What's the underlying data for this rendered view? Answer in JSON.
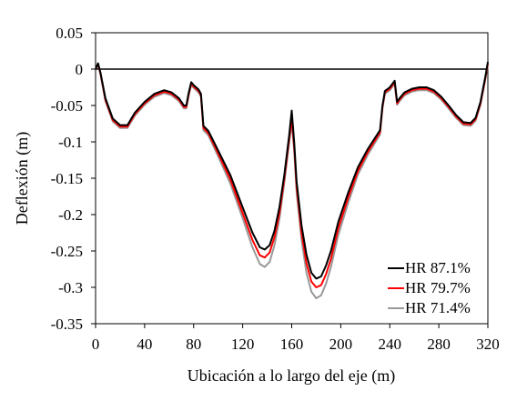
{
  "chart_data": {
    "type": "line",
    "title": "",
    "xlabel": "Ubicación a lo largo del eje (m)",
    "ylabel": "Deflexión (m)",
    "xlim": [
      0,
      320
    ],
    "ylim": [
      -0.35,
      0.05
    ],
    "xticks": [
      0,
      40,
      80,
      120,
      160,
      200,
      240,
      280,
      320
    ],
    "yticks": [
      0.05,
      0,
      -0.05,
      -0.1,
      -0.15,
      -0.2,
      -0.25,
      -0.3,
      -0.35
    ],
    "xtick_labels": [
      "0",
      "40",
      "80",
      "120",
      "160",
      "200",
      "240",
      "280",
      "320"
    ],
    "ytick_labels": [
      "0.05",
      "0",
      "-0.05",
      "-0.1",
      "-0.15",
      "-0.2",
      "-0.25",
      "-0.3",
      "-0.35"
    ],
    "grid": false,
    "reference_line": {
      "y": 0,
      "color": "#000000"
    },
    "legend_position": "bottom-right",
    "series": [
      {
        "name": "HR 87.1%",
        "color": "#000000",
        "x": [
          0,
          2,
          4,
          8,
          14,
          20,
          26,
          32,
          40,
          48,
          56,
          62,
          68,
          72,
          74,
          76,
          78,
          80,
          84,
          86,
          88,
          92,
          100,
          110,
          120,
          128,
          134,
          138,
          142,
          146,
          150,
          154,
          158,
          160,
          162,
          164,
          168,
          172,
          176,
          180,
          184,
          188,
          192,
          198,
          206,
          214,
          222,
          232,
          234,
          236,
          240,
          244,
          246,
          248,
          252,
          258,
          264,
          270,
          276,
          282,
          288,
          294,
          300,
          306,
          310,
          314,
          318,
          320
        ],
        "y": [
          0.0,
          0.008,
          -0.005,
          -0.04,
          -0.068,
          -0.077,
          -0.077,
          -0.06,
          -0.045,
          -0.034,
          -0.029,
          -0.032,
          -0.04,
          -0.05,
          -0.05,
          -0.032,
          -0.018,
          -0.022,
          -0.028,
          -0.034,
          -0.078,
          -0.085,
          -0.112,
          -0.146,
          -0.19,
          -0.225,
          -0.245,
          -0.248,
          -0.242,
          -0.222,
          -0.19,
          -0.145,
          -0.09,
          -0.057,
          -0.1,
          -0.155,
          -0.215,
          -0.255,
          -0.28,
          -0.288,
          -0.285,
          -0.27,
          -0.25,
          -0.21,
          -0.17,
          -0.135,
          -0.11,
          -0.084,
          -0.05,
          -0.03,
          -0.025,
          -0.016,
          -0.045,
          -0.04,
          -0.032,
          -0.027,
          -0.025,
          -0.025,
          -0.029,
          -0.038,
          -0.05,
          -0.063,
          -0.073,
          -0.074,
          -0.067,
          -0.045,
          -0.01,
          0.01
        ]
      },
      {
        "name": "HR 79.7%",
        "color": "#ff0000",
        "x": [
          0,
          2,
          4,
          8,
          14,
          20,
          26,
          32,
          40,
          48,
          56,
          62,
          68,
          72,
          74,
          76,
          78,
          80,
          84,
          86,
          88,
          92,
          100,
          110,
          120,
          128,
          134,
          138,
          142,
          146,
          150,
          154,
          158,
          160,
          162,
          164,
          168,
          172,
          176,
          180,
          184,
          188,
          192,
          198,
          206,
          214,
          222,
          232,
          234,
          236,
          240,
          244,
          246,
          248,
          252,
          258,
          264,
          270,
          276,
          282,
          288,
          294,
          300,
          306,
          310,
          314,
          318,
          320
        ],
        "y": [
          0.0,
          0.007,
          -0.006,
          -0.042,
          -0.07,
          -0.079,
          -0.079,
          -0.062,
          -0.047,
          -0.036,
          -0.031,
          -0.034,
          -0.042,
          -0.052,
          -0.052,
          -0.034,
          -0.02,
          -0.024,
          -0.03,
          -0.036,
          -0.081,
          -0.088,
          -0.116,
          -0.152,
          -0.198,
          -0.235,
          -0.256,
          -0.259,
          -0.252,
          -0.231,
          -0.198,
          -0.15,
          -0.095,
          -0.068,
          -0.106,
          -0.162,
          -0.225,
          -0.267,
          -0.292,
          -0.3,
          -0.297,
          -0.282,
          -0.261,
          -0.219,
          -0.177,
          -0.14,
          -0.114,
          -0.087,
          -0.052,
          -0.032,
          -0.027,
          -0.018,
          -0.047,
          -0.042,
          -0.034,
          -0.029,
          -0.027,
          -0.027,
          -0.031,
          -0.04,
          -0.052,
          -0.065,
          -0.075,
          -0.076,
          -0.069,
          -0.047,
          -0.012,
          0.008
        ]
      },
      {
        "name": "HR 71.4%",
        "color": "#999999",
        "x": [
          0,
          2,
          4,
          8,
          14,
          20,
          26,
          32,
          40,
          48,
          56,
          62,
          68,
          72,
          74,
          76,
          78,
          80,
          84,
          86,
          88,
          92,
          100,
          110,
          120,
          128,
          134,
          138,
          142,
          146,
          150,
          154,
          158,
          160,
          162,
          164,
          168,
          172,
          176,
          180,
          184,
          188,
          192,
          198,
          206,
          214,
          222,
          232,
          234,
          236,
          240,
          244,
          246,
          248,
          252,
          258,
          264,
          270,
          276,
          282,
          288,
          294,
          300,
          306,
          310,
          314,
          318,
          320
        ],
        "y": [
          0.0,
          0.006,
          -0.007,
          -0.044,
          -0.072,
          -0.081,
          -0.081,
          -0.064,
          -0.049,
          -0.038,
          -0.033,
          -0.036,
          -0.044,
          -0.054,
          -0.054,
          -0.036,
          -0.022,
          -0.026,
          -0.032,
          -0.038,
          -0.084,
          -0.091,
          -0.12,
          -0.158,
          -0.205,
          -0.245,
          -0.268,
          -0.272,
          -0.265,
          -0.242,
          -0.206,
          -0.156,
          -0.1,
          -0.075,
          -0.112,
          -0.17,
          -0.235,
          -0.28,
          -0.306,
          -0.315,
          -0.311,
          -0.295,
          -0.272,
          -0.228,
          -0.184,
          -0.145,
          -0.118,
          -0.09,
          -0.054,
          -0.034,
          -0.029,
          -0.02,
          -0.049,
          -0.044,
          -0.036,
          -0.031,
          -0.029,
          -0.029,
          -0.033,
          -0.042,
          -0.054,
          -0.067,
          -0.077,
          -0.078,
          -0.071,
          -0.049,
          -0.014,
          0.006
        ]
      }
    ]
  }
}
